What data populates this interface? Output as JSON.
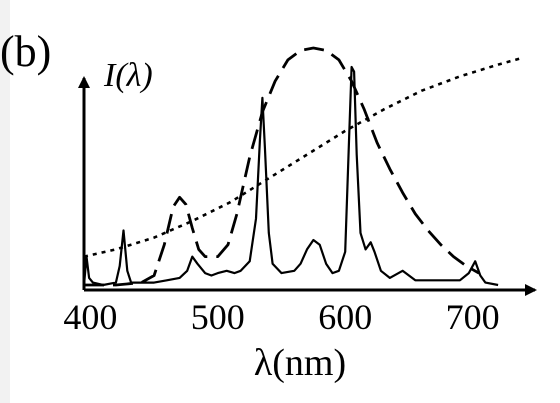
{
  "panel_label": "(b)",
  "chart_data": {
    "type": "line",
    "ylabel": "I(λ)",
    "xlabel": "λ(nm)",
    "x_ticks": [
      400,
      500,
      600,
      700
    ],
    "xlim": [
      395,
      745
    ],
    "ylim": [
      0,
      1
    ],
    "grid": false,
    "legend": "none",
    "series": [
      {
        "style": "solid",
        "color": "#000000",
        "points": [
          [
            395,
            0.0
          ],
          [
            397,
            0.12
          ],
          [
            399,
            0.03
          ],
          [
            402,
            0.01
          ],
          [
            410,
            0.0
          ],
          [
            420,
            0.01
          ],
          [
            423,
            0.08
          ],
          [
            426,
            0.23
          ],
          [
            429,
            0.06
          ],
          [
            432,
            0.01
          ],
          [
            440,
            0.01
          ],
          [
            450,
            0.01
          ],
          [
            460,
            0.02
          ],
          [
            470,
            0.03
          ],
          [
            476,
            0.06
          ],
          [
            480,
            0.12
          ],
          [
            484,
            0.09
          ],
          [
            490,
            0.05
          ],
          [
            495,
            0.04
          ],
          [
            500,
            0.05
          ],
          [
            507,
            0.06
          ],
          [
            513,
            0.05
          ],
          [
            518,
            0.06
          ],
          [
            525,
            0.1
          ],
          [
            530,
            0.28
          ],
          [
            533,
            0.61
          ],
          [
            535,
            0.79
          ],
          [
            537,
            0.58
          ],
          [
            540,
            0.22
          ],
          [
            543,
            0.09
          ],
          [
            550,
            0.05
          ],
          [
            560,
            0.06
          ],
          [
            565,
            0.09
          ],
          [
            570,
            0.15
          ],
          [
            575,
            0.19
          ],
          [
            580,
            0.17
          ],
          [
            585,
            0.09
          ],
          [
            590,
            0.05
          ],
          [
            595,
            0.06
          ],
          [
            600,
            0.14
          ],
          [
            603,
            0.62
          ],
          [
            605,
            0.92
          ],
          [
            607,
            0.9
          ],
          [
            609,
            0.55
          ],
          [
            612,
            0.22
          ],
          [
            616,
            0.15
          ],
          [
            620,
            0.18
          ],
          [
            623,
            0.14
          ],
          [
            628,
            0.06
          ],
          [
            635,
            0.03
          ],
          [
            645,
            0.06
          ],
          [
            655,
            0.02
          ],
          [
            665,
            0.02
          ],
          [
            680,
            0.02
          ],
          [
            690,
            0.02
          ],
          [
            697,
            0.05
          ],
          [
            702,
            0.1
          ],
          [
            706,
            0.04
          ],
          [
            710,
            0.01
          ],
          [
            720,
            0.0
          ]
        ]
      },
      {
        "style": "dashed",
        "color": "#000000",
        "points": [
          [
            395,
            0.0
          ],
          [
            420,
            0.0
          ],
          [
            440,
            0.01
          ],
          [
            450,
            0.04
          ],
          [
            458,
            0.17
          ],
          [
            465,
            0.33
          ],
          [
            470,
            0.37
          ],
          [
            475,
            0.34
          ],
          [
            480,
            0.24
          ],
          [
            485,
            0.15
          ],
          [
            490,
            0.12
          ],
          [
            500,
            0.12
          ],
          [
            508,
            0.17
          ],
          [
            515,
            0.3
          ],
          [
            525,
            0.54
          ],
          [
            535,
            0.73
          ],
          [
            545,
            0.86
          ],
          [
            555,
            0.95
          ],
          [
            565,
            0.99
          ],
          [
            575,
            1.0
          ],
          [
            585,
            0.99
          ],
          [
            595,
            0.95
          ],
          [
            605,
            0.86
          ],
          [
            615,
            0.74
          ],
          [
            625,
            0.6
          ],
          [
            635,
            0.49
          ],
          [
            645,
            0.39
          ],
          [
            655,
            0.3
          ],
          [
            665,
            0.23
          ],
          [
            675,
            0.17
          ],
          [
            685,
            0.12
          ],
          [
            695,
            0.08
          ],
          [
            705,
            0.05
          ]
        ]
      },
      {
        "style": "dotted",
        "color": "#000000",
        "points": [
          [
            395,
            0.12
          ],
          [
            420,
            0.15
          ],
          [
            450,
            0.2
          ],
          [
            480,
            0.27
          ],
          [
            510,
            0.35
          ],
          [
            540,
            0.45
          ],
          [
            570,
            0.55
          ],
          [
            600,
            0.65
          ],
          [
            630,
            0.74
          ],
          [
            660,
            0.82
          ],
          [
            690,
            0.88
          ],
          [
            720,
            0.93
          ],
          [
            740,
            0.96
          ]
        ]
      }
    ]
  }
}
